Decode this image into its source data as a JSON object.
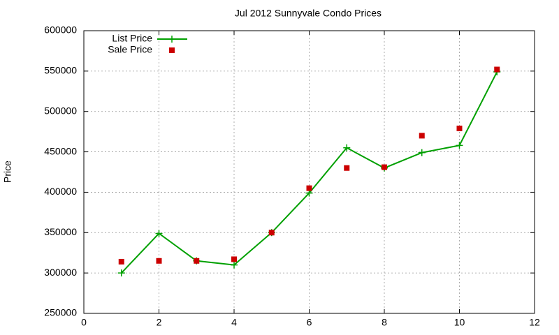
{
  "chart_data": {
    "type": "line",
    "title": "Jul 2012 Sunnyvale Condo Prices",
    "y_label": "Price",
    "x": [
      1,
      2,
      3,
      4,
      5,
      6,
      7,
      8,
      9,
      10,
      11
    ],
    "series": [
      {
        "name": "List Price",
        "color": "#00a000",
        "style": "linespoints",
        "values": [
          300000,
          349000,
          315000,
          310000,
          350000,
          399000,
          455000,
          430000,
          449000,
          458000,
          549000
        ]
      },
      {
        "name": "Sale Price",
        "color": "#cc0000",
        "style": "points",
        "values": [
          314000,
          315000,
          315000,
          317000,
          350000,
          405000,
          430000,
          431000,
          470000,
          479000,
          552000
        ]
      }
    ],
    "xlim": [
      0,
      12
    ],
    "xticks": [
      0,
      2,
      4,
      6,
      8,
      10,
      12
    ],
    "ylim": [
      250000,
      600000
    ],
    "yticks": [
      250000,
      300000,
      350000,
      400000,
      450000,
      500000,
      550000,
      600000
    ],
    "grid": true,
    "legend": "top-left"
  }
}
